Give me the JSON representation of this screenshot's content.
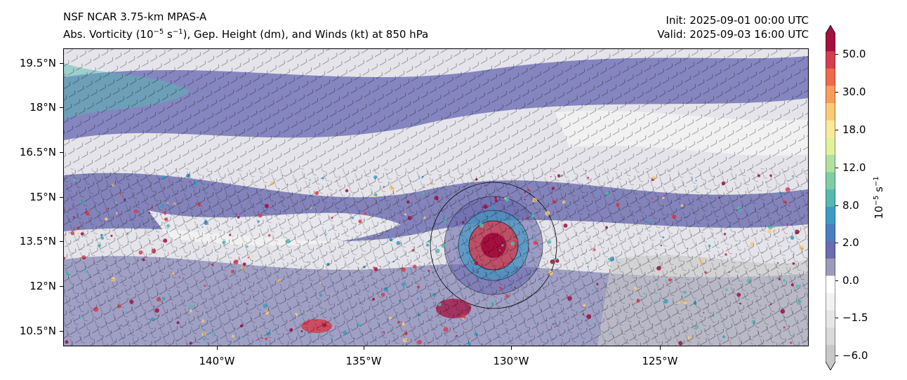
{
  "header": {
    "model": "NSF NCAR 3.75-km MPAS-A",
    "field_pre": "Abs. Vorticity (10",
    "field_exp1": "−5",
    "field_mid": " s",
    "field_exp2": "−1",
    "field_post": "), Gep. Height (dm), and Winds (kt) at 850 hPa",
    "init": "Init: 2025-09-01 00:00 UTC",
    "valid": "Valid: 2025-09-03 16:00 UTC"
  },
  "map": {
    "lat_labels": [
      "19.5°N",
      "18°N",
      "16.5°N",
      "15°N",
      "13.5°N",
      "12°N",
      "10.5°N"
    ],
    "lon_labels": [
      "140°W",
      "135°W",
      "130°W",
      "125°W"
    ],
    "storm_center_lon": "130.5°W",
    "storm_center_lat": "13.4°N"
  },
  "colorbar": {
    "labels": [
      "50.0",
      "30.0",
      "18.0",
      "12.0",
      "8.0",
      "2.0",
      "0.0",
      "−1.5",
      "−6.0"
    ],
    "title_pre": "10",
    "title_exp1": "−5",
    "title_mid": " s",
    "title_exp2": "−1",
    "colors": [
      "#c8c8c8",
      "#d9d9d9",
      "#e6e6e6",
      "#f2f2f2",
      "#ffffff",
      "#9c9cb8",
      "#6b6bb0",
      "#4a7fbf",
      "#3a9cc4",
      "#55b9b0",
      "#7fcda5",
      "#b3e0a0",
      "#e1f19c",
      "#fee99a",
      "#fdc878",
      "#f89c5c",
      "#ef6a4c",
      "#d63d4f",
      "#a50f3e"
    ]
  }
}
